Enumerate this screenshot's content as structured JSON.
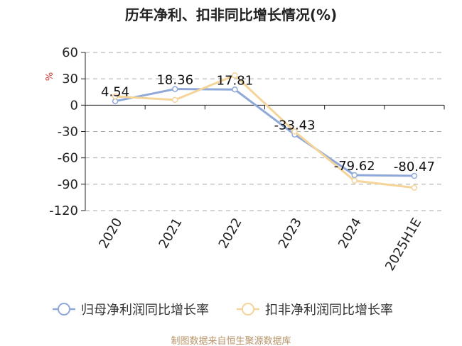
{
  "chart_data": {
    "type": "line",
    "title": "历年净利、扣非同比增长情况(%)",
    "ylabel": "%",
    "xlabel": "",
    "categories": [
      "2020",
      "2021",
      "2022",
      "2023",
      "2024",
      "2025H1E"
    ],
    "ylim": [
      -120,
      60
    ],
    "yticks": [
      60,
      30,
      0,
      -30,
      -60,
      -90,
      -120
    ],
    "grid": true,
    "legend_position": "bottom",
    "series": [
      {
        "name": "归母净利润同比增长率",
        "values": [
          4.54,
          18.36,
          17.81,
          -33.43,
          -79.62,
          -80.47
        ],
        "labels": [
          "4.54",
          "18.36",
          "17.81",
          "-33.43",
          "-79.62",
          "-80.47"
        ],
        "color": "#8fa8d8"
      },
      {
        "name": "扣非净利润同比增长率",
        "values": [
          10,
          6,
          34,
          -30,
          -86,
          -94
        ],
        "color": "#f5d49a"
      }
    ],
    "colors": {
      "unit": "#c0392b",
      "source": "#b8956a",
      "axis": "#222222",
      "grid": "#aaaaaa"
    }
  },
  "footer": {
    "source": "制图数据来自恒生聚源数据库"
  }
}
